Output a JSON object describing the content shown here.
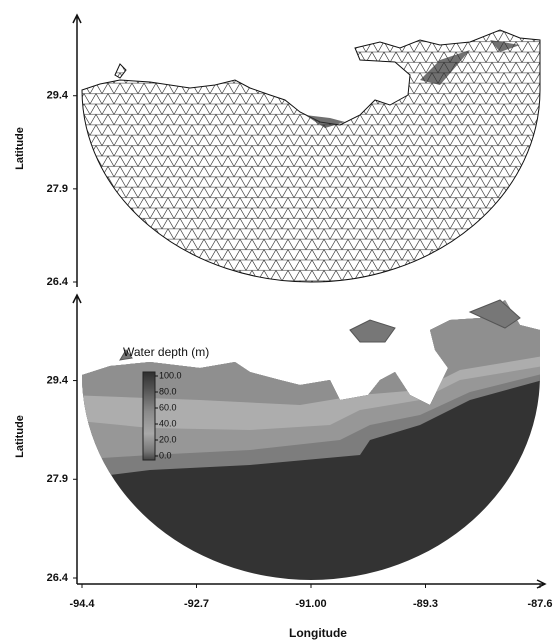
{
  "chart_data": [
    {
      "type": "map",
      "ylabel": "Latitude",
      "ylim": [
        26.4,
        30.7
      ],
      "yticks": [
        29.4,
        27.9,
        26.4
      ]
    },
    {
      "type": "map",
      "ylabel": "Latitude",
      "xlabel": "Longitude",
      "xlim": [
        -94.4,
        -87.6
      ],
      "xticks": [
        -94.4,
        -92.7,
        {
          "value": -91,
          "label": "-91.00"
        },
        -89.3,
        -87.6
      ],
      "ylim": [
        26.4,
        30.7
      ],
      "yticks": [
        29.4,
        27.9,
        26.4
      ],
      "colorbar": {
        "title": "Water depth (m)",
        "ticks": [
          {
            "value": 100,
            "label": "100.0"
          },
          {
            "value": 80,
            "label": "80.0"
          },
          {
            "value": 60,
            "label": "60.0"
          },
          {
            "value": 40,
            "label": "40.0"
          },
          {
            "value": 20,
            "label": "20.0"
          },
          {
            "value": 0,
            "label": "0.0"
          }
        ]
      }
    }
  ]
}
